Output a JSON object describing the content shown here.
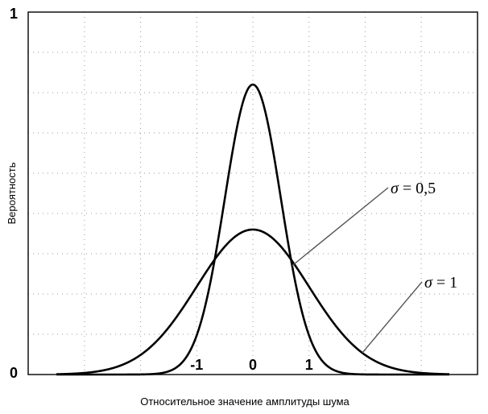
{
  "chart_data": {
    "type": "line",
    "title": "",
    "xlabel": "Относительное значение амплитуды шума",
    "ylabel": "Вероятность",
    "xlim": [
      -3.5,
      3.5
    ],
    "ylim": [
      0,
      1
    ],
    "x_ticks": [
      -1,
      0,
      1
    ],
    "x_tick_labels": [
      "-1",
      "0",
      "1"
    ],
    "y_ticks": [
      0,
      1
    ],
    "y_tick_labels": [
      "0",
      "1"
    ],
    "grid": true,
    "legend": "none",
    "series": [
      {
        "name": "σ = 0,5",
        "label_symbol": "σ",
        "label_value": " = 0,5",
        "distribution": "normal",
        "mean": 0,
        "sigma": 0.5,
        "peak": 0.8
      },
      {
        "name": "σ = 1",
        "label_symbol": "σ",
        "label_value": " = 1",
        "distribution": "normal",
        "mean": 0,
        "sigma": 1,
        "peak": 0.4
      }
    ]
  }
}
